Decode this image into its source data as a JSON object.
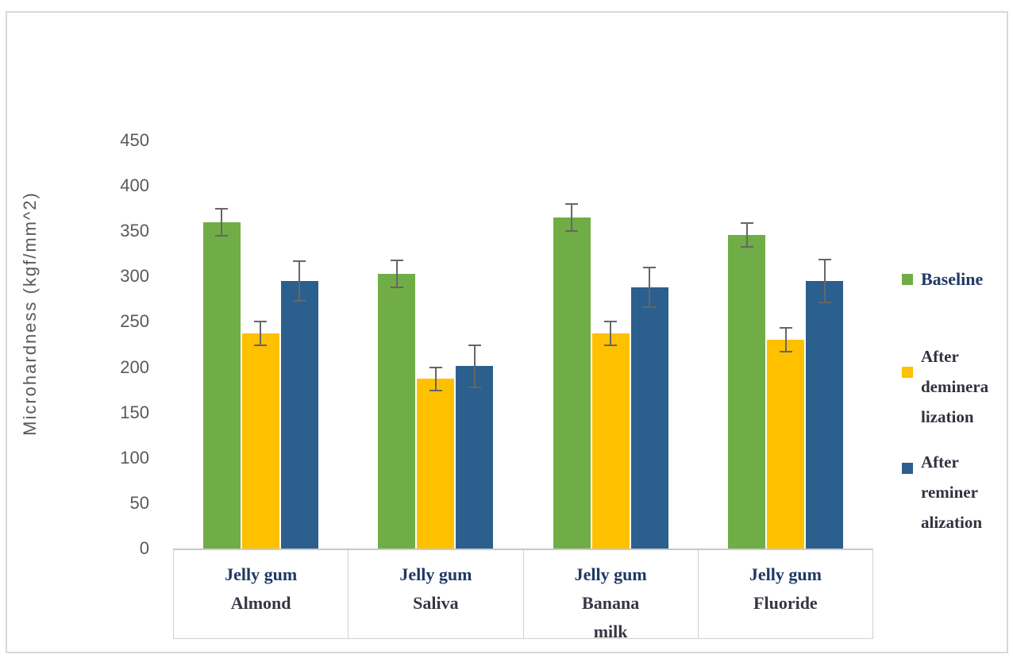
{
  "chart_data": {
    "type": "bar",
    "title": "",
    "ylabel": "Microhardness (kgf/mm^2)",
    "xlabel": "",
    "ylim": [
      0,
      450
    ],
    "ytick_interval": 50,
    "yticks": [
      450,
      400,
      350,
      300,
      250,
      200,
      150,
      100,
      50,
      0
    ],
    "grid": false,
    "legend_position": "right",
    "error_bars": true,
    "categories": [
      "Jelly gum Almond",
      "Jelly gum Saliva",
      "Jelly gum Banana milk",
      "Jelly gum Fluoride"
    ],
    "category_label_lines": [
      [
        "Jelly gum",
        "Almond"
      ],
      [
        "Jelly gum",
        "Saliva"
      ],
      [
        "Jelly gum",
        "Banana",
        "milk"
      ],
      [
        "Jelly gum",
        "Fluoride"
      ]
    ],
    "series": [
      {
        "name": "Baseline",
        "legend_lines": [
          "Baseline"
        ],
        "color": "#70AD47",
        "values": [
          360,
          303,
          365,
          346
        ],
        "errors": [
          15,
          15,
          15,
          13
        ]
      },
      {
        "name": "After demineralization",
        "legend_lines": [
          "After",
          "deminera",
          "lization"
        ],
        "color": "#FFC000",
        "values": [
          237,
          187,
          237,
          230
        ],
        "errors": [
          13,
          13,
          13,
          13
        ]
      },
      {
        "name": "After remineralization",
        "legend_lines": [
          "After",
          "reminer",
          "alization"
        ],
        "color": "#2B5F8E",
        "values": [
          295,
          201,
          288,
          295
        ],
        "errors": [
          22,
          23,
          22,
          24
        ]
      }
    ]
  },
  "style": {
    "axis_text_color": "#595959",
    "category_line1_color": "#1F3864",
    "category_line2_color": "#3A3444",
    "legend_baseline_color": "#1F3864",
    "legend_text_color": "#343040",
    "error_bar_color": "#666666",
    "border_color": "#D9D9D9",
    "background_color": "#FFFFFF"
  }
}
